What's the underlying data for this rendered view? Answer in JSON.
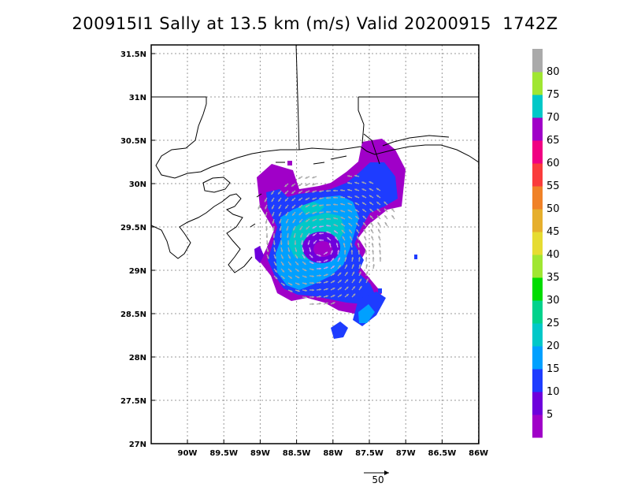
{
  "title": "200915I1 Sally at 13.5 km (m/s) Valid 20200915  1742Z",
  "x_ticks": [
    "90W",
    "89.5W",
    "89W",
    "88.5W",
    "88W",
    "87.5W",
    "87W",
    "86.5W",
    "86W"
  ],
  "y_ticks": [
    "31.5N",
    "31N",
    "30.5N",
    "30N",
    "29.5N",
    "29N",
    "28.5N",
    "28N",
    "27.5N",
    "27N"
  ],
  "colorbar": {
    "labels": [
      "5",
      "10",
      "15",
      "20",
      "25",
      "30",
      "35",
      "40",
      "45",
      "50",
      "55",
      "60",
      "65",
      "70",
      "75",
      "80"
    ],
    "colors": [
      "#a000c8",
      "#6e00dc",
      "#1e3cff",
      "#00a0ff",
      "#00c8c8",
      "#00d28c",
      "#00dc00",
      "#a0e632",
      "#e6dc32",
      "#e6af2d",
      "#f08228",
      "#fa3c3c",
      "#f00082",
      "#a000c8",
      "#00c8c8",
      "#a0e632",
      "#aaaaaa"
    ]
  },
  "reference_vector": {
    "label": "50"
  }
}
